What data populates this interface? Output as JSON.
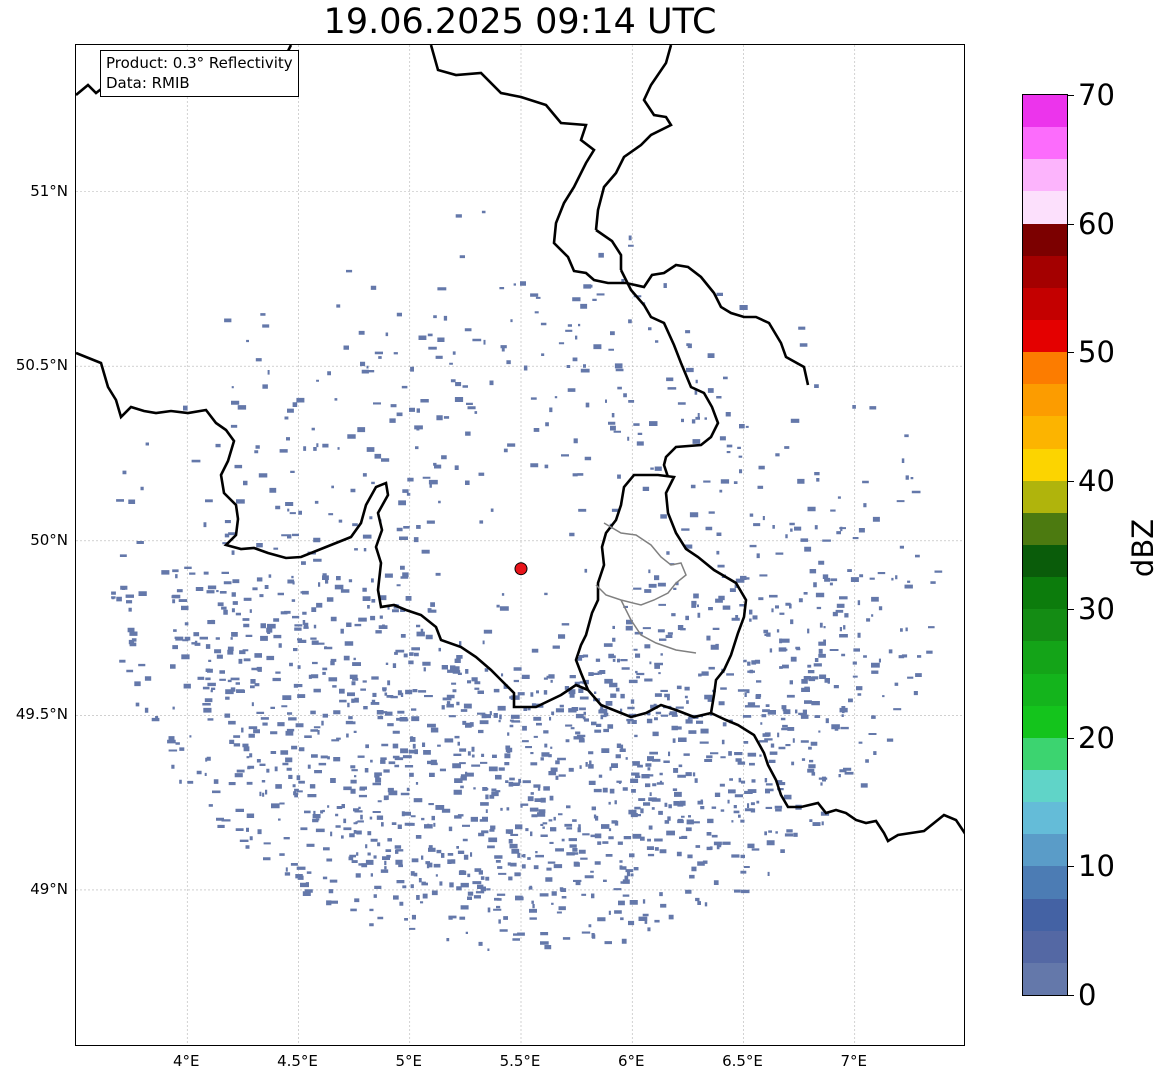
{
  "title": "19.06.2025 09:14 UTC",
  "info": {
    "product": "Product: 0.3° Reflectivity",
    "data_source": "Data: RMIB"
  },
  "map": {
    "extent_lon": [
      3.5,
      7.5
    ],
    "extent_lat": [
      48.55,
      51.42
    ],
    "lat_ticks": [
      {
        "value": 49.0,
        "label": "49°N"
      },
      {
        "value": 49.5,
        "label": "49.5°N"
      },
      {
        "value": 50.0,
        "label": "50°N"
      },
      {
        "value": 50.5,
        "label": "50.5°N"
      },
      {
        "value": 51.0,
        "label": "51°N"
      }
    ],
    "lon_ticks": [
      {
        "value": 4.0,
        "label": "4°E"
      },
      {
        "value": 4.5,
        "label": "4.5°E"
      },
      {
        "value": 5.0,
        "label": "5°E"
      },
      {
        "value": 5.5,
        "label": "5.5°E"
      },
      {
        "value": 6.0,
        "label": "6°E"
      },
      {
        "value": 6.5,
        "label": "6.5°E"
      },
      {
        "value": 7.0,
        "label": "7°E"
      }
    ],
    "gridlines": true,
    "radar_site": {
      "lon": 5.5,
      "lat": 49.92,
      "color": "#e8141a"
    },
    "echo_color": "#6478aa",
    "border_color": "#000000",
    "region_border_color": "#808080"
  },
  "colorbar": {
    "unit": "dBZ",
    "min": 0,
    "max": 70,
    "ticks": [
      {
        "value": 0,
        "label": "0"
      },
      {
        "value": 10,
        "label": "10"
      },
      {
        "value": 20,
        "label": "20"
      },
      {
        "value": 30,
        "label": "30"
      },
      {
        "value": 40,
        "label": "40"
      },
      {
        "value": 50,
        "label": "50"
      },
      {
        "value": 60,
        "label": "60"
      },
      {
        "value": 70,
        "label": "70"
      }
    ],
    "colors": [
      "#6478aa",
      "#5468a4",
      "#4462a4",
      "#4c7cb4",
      "#5a9cc8",
      "#64bcd8",
      "#60d4c8",
      "#3cd470",
      "#14c41c",
      "#14b41c",
      "#14a418",
      "#148c14",
      "#0c7c0c",
      "#0a5c0a",
      "#4c7a10",
      "#b0b40c",
      "#fcd400",
      "#fcb400",
      "#fc9c00",
      "#fc7c00",
      "#e40000",
      "#c40000",
      "#a40000",
      "#7c0000",
      "#fce0fc",
      "#fcb4fc",
      "#fc6cfc",
      "#ec34ec"
    ]
  }
}
